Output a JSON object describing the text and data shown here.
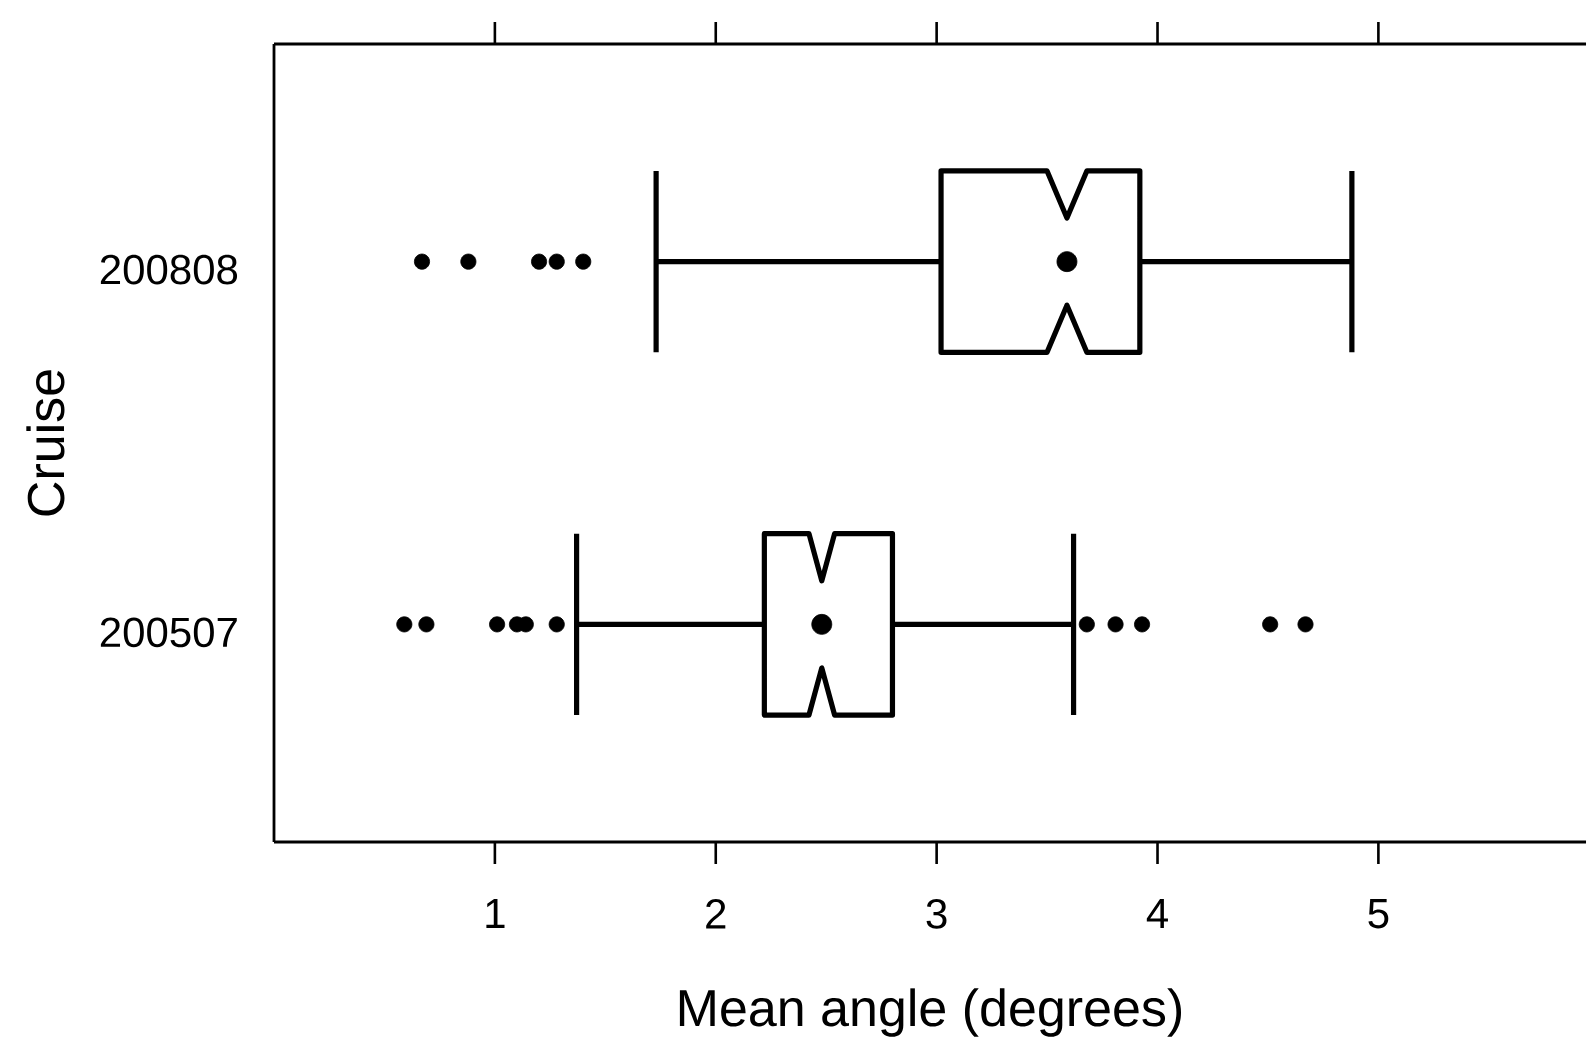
{
  "chart_data": {
    "type": "box",
    "orientation": "horizontal",
    "xlabel": "Mean angle (degrees)",
    "ylabel": "Cruise",
    "categories": [
      "200808",
      "200507"
    ],
    "boxes": [
      {
        "low": 1.73,
        "q1": 3.02,
        "median": 3.59,
        "q3": 3.92,
        "high": 4.88,
        "outliers": [
          0.67,
          0.88,
          1.2,
          1.28,
          1.4
        ]
      },
      {
        "low": 1.37,
        "q1": 2.22,
        "median": 2.48,
        "q3": 2.8,
        "high": 3.62,
        "outliers": [
          0.59,
          0.69,
          1.01,
          1.1,
          1.14,
          1.28,
          3.68,
          3.81,
          3.93,
          4.51,
          4.67
        ]
      }
    ],
    "xlim": [
      0,
      5.94
    ],
    "xticks": [
      1,
      2,
      3,
      4,
      5
    ],
    "color": "#000000",
    "marker": "circle"
  }
}
